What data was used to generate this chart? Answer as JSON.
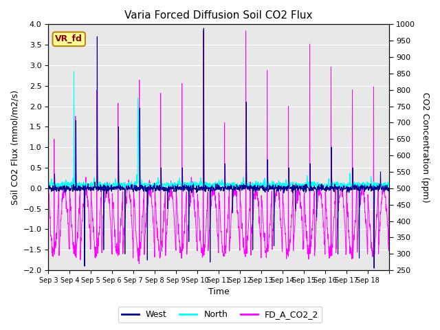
{
  "title": "Varia Forced Diffusion Soil CO2 Flux",
  "ylabel_left": "Soil CO2 Flux (mmol/m2/s)",
  "ylabel_right": "CO2 Concentration (ppm)",
  "xlabel": "Time",
  "ylim_left": [
    -2.0,
    4.0
  ],
  "ylim_right": [
    250,
    1000
  ],
  "yticks_left": [
    -2.0,
    -1.5,
    -1.0,
    -0.5,
    0.0,
    0.5,
    1.0,
    1.5,
    2.0,
    2.5,
    3.0,
    3.5,
    4.0
  ],
  "yticks_right": [
    250,
    300,
    350,
    400,
    450,
    500,
    550,
    600,
    650,
    700,
    750,
    800,
    850,
    900,
    950,
    1000
  ],
  "xtick_positions": [
    0,
    1,
    2,
    3,
    4,
    5,
    6,
    7,
    8,
    9,
    10,
    11,
    12,
    13,
    14,
    15,
    16
  ],
  "xtick_labels": [
    "Sep 3",
    "Sep 4",
    "Sep 5",
    "Sep 6",
    "Sep 7",
    "Sep 8",
    "Sep 9",
    "Sep 10",
    "Sep 11",
    "Sep 12",
    "Sep 13",
    "Sep 14",
    "Sep 15",
    "Sep 16",
    "Sep 17",
    "Sep 18",
    ""
  ],
  "color_west": "#00008B",
  "color_north": "#00FFFF",
  "color_co2": "#FF00FF",
  "label_west": "West",
  "label_north": "North",
  "label_co2": "FD_A_CO2_2",
  "vr_fd_label": "VR_fd",
  "bg_color": "#E8E8E8",
  "n_days": 16,
  "seed": 42
}
